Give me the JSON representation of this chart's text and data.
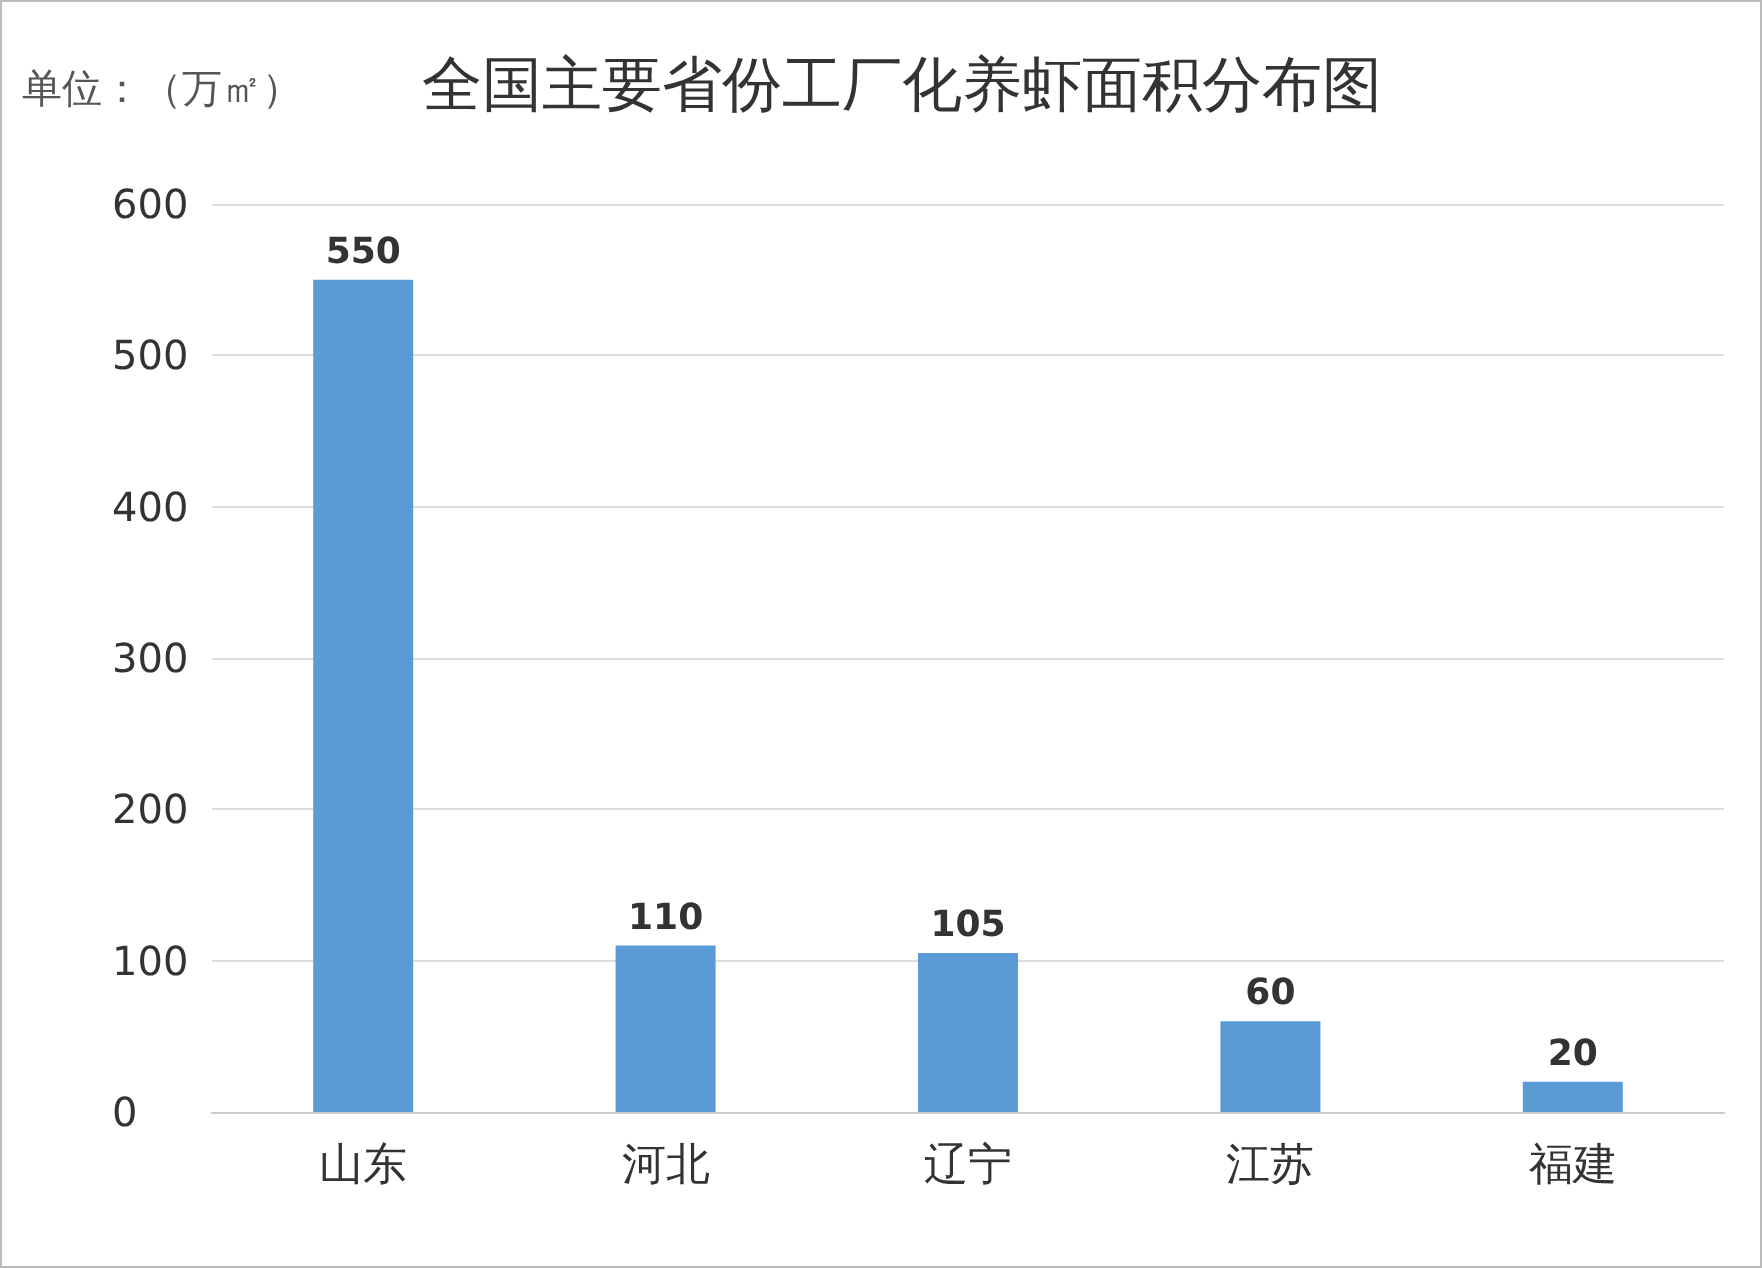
{
  "chart_data": {
    "type": "bar",
    "title": "全国主要省份工厂化养虾面积分布图",
    "ylabel": "单位：（万㎡）",
    "categories": [
      "山东",
      "河北",
      "辽宁",
      "江苏",
      "福建"
    ],
    "values": [
      550,
      110,
      105,
      60,
      20
    ],
    "color": "#5b9bd5",
    "ylim": [
      0,
      600
    ],
    "yticks": [
      0,
      100,
      200,
      300,
      400,
      500,
      600
    ],
    "grid": "y",
    "data_labels": true
  }
}
